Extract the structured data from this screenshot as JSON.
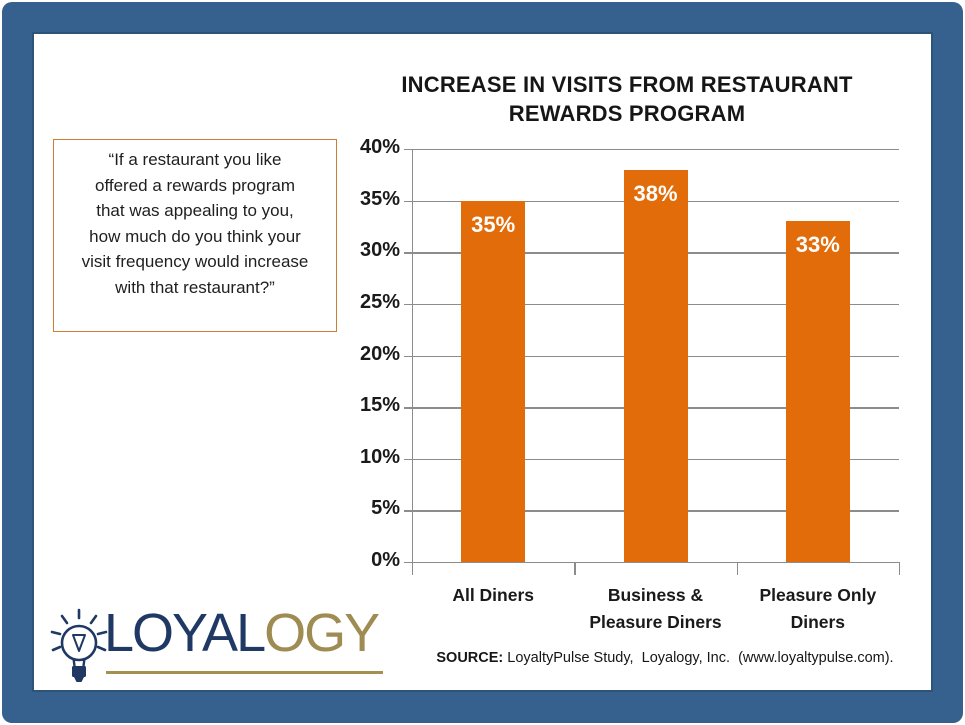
{
  "frame": {
    "border_color": "#36618F"
  },
  "title": {
    "line1": "INCREASE IN VISITS FROM RESTAURANT",
    "line2": "REWARDS PROGRAM"
  },
  "quote_box": {
    "text": "“If a restaurant you like offered a rewards program that was appealing to you, how much do you think your visit frequency would increase with that restaurant?”",
    "border_color": "#CF7C35"
  },
  "chart_data": {
    "type": "bar",
    "title": "INCREASE IN VISITS FROM RESTAURANT REWARDS PROGRAM",
    "categories": [
      "All Diners",
      "Business & Pleasure Diners",
      "Pleasure Only Diners"
    ],
    "category_lines": [
      [
        "All Diners"
      ],
      [
        "Business &",
        "Pleasure Diners"
      ],
      [
        "Pleasure Only",
        "Diners"
      ]
    ],
    "values": [
      35,
      38,
      33
    ],
    "bar_labels": [
      "35%",
      "38%",
      "33%"
    ],
    "bar_color": "#E26C09",
    "bar_label_color": "#FFFFFF",
    "xlabel": "",
    "ylabel": "",
    "ylim": [
      0,
      40
    ],
    "ytick_step": 5,
    "ytick_labels": [
      "0%",
      "5%",
      "10%",
      "15%",
      "20%",
      "25%",
      "30%",
      "35%",
      "40%"
    ],
    "grid": true,
    "gridline_color": "#8C8C8C",
    "legend": "none"
  },
  "source": {
    "label": "SOURCE:",
    "text": " LoyaltyPulse Study,  Loyalogy, Inc.  (www.loyaltypulse.com)."
  },
  "logo": {
    "word_primary": "LOYAL",
    "word_secondary": "OGY",
    "primary_color": "#1F3864",
    "secondary_color": "#9E8C52",
    "underline_color": "#A5914F",
    "icon": "lightbulb-icon"
  }
}
